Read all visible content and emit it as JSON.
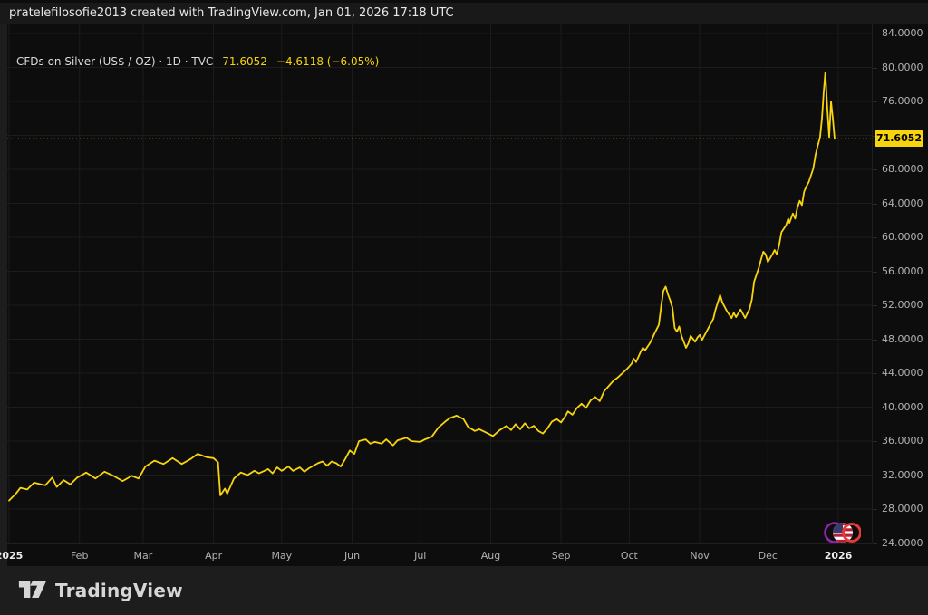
{
  "watermark_bar": {
    "text": "pratelefilosofie2013 created with TradingView.com, Jan 01, 2026 17:18 UTC"
  },
  "legend": {
    "symbol_title": "CFDs on Silver (US$ / OZ) · 1D · TVC",
    "last_price_text": "71.6052",
    "change_text": "−4.6118 (−6.05%)"
  },
  "price_scale": {
    "current_label": "71.6052",
    "ticks": [
      {
        "v": 84,
        "label": "84.0000"
      },
      {
        "v": 80,
        "label": "80.0000"
      },
      {
        "v": 76,
        "label": "76.0000"
      },
      {
        "v": 72,
        "label": "72.0000"
      },
      {
        "v": 68,
        "label": "68.0000"
      },
      {
        "v": 64,
        "label": "64.0000"
      },
      {
        "v": 60,
        "label": "60.0000"
      },
      {
        "v": 56,
        "label": "56.0000"
      },
      {
        "v": 52,
        "label": "52.0000"
      },
      {
        "v": 48,
        "label": "48.0000"
      },
      {
        "v": 44,
        "label": "44.0000"
      },
      {
        "v": 40,
        "label": "40.0000"
      },
      {
        "v": 36,
        "label": "36.0000"
      },
      {
        "v": 32,
        "label": "32.0000"
      },
      {
        "v": 28,
        "label": "28.0000"
      },
      {
        "v": 24,
        "label": "24.0000"
      }
    ]
  },
  "time_scale": {
    "labels": [
      {
        "text": "2025",
        "day": 0,
        "bold": true
      },
      {
        "text": "Feb",
        "day": 31
      },
      {
        "text": "Mar",
        "day": 59
      },
      {
        "text": "Apr",
        "day": 90
      },
      {
        "text": "May",
        "day": 120
      },
      {
        "text": "Jun",
        "day": 151
      },
      {
        "text": "Jul",
        "day": 181
      },
      {
        "text": "Aug",
        "day": 212
      },
      {
        "text": "Sep",
        "day": 243
      },
      {
        "text": "Oct",
        "day": 273
      },
      {
        "text": "Nov",
        "day": 304
      },
      {
        "text": "Dec",
        "day": 334
      },
      {
        "text": "2026",
        "day": 365,
        "bold": true
      }
    ]
  },
  "symbol_logo": {
    "icons": [
      "purple-ring-icon",
      "us-flag-icon",
      "red-ring-icon"
    ],
    "purple": "#8e24aa",
    "red": "#e53935",
    "flag_red": "#b22234",
    "flag_white": "#ffffff",
    "flag_blue": "#3c3b6e"
  },
  "footer": {
    "brand": "TradingView"
  },
  "colors": {
    "line": "#f7d40c",
    "label_bg": "#f7d40c",
    "grid": "#1c1c1c",
    "axis_text": "#b2b2b2",
    "background": "#0d0d0d",
    "frame": "#1d1d1d"
  },
  "chart_data": {
    "type": "line",
    "title": "CFDs on Silver (US$ / OZ)",
    "interval": "1D",
    "exchange": "TVC",
    "last_price": 71.6052,
    "change": -4.6118,
    "change_pct": -6.05,
    "ylim": [
      24,
      84
    ],
    "y_ticks": [
      24,
      28,
      32,
      36,
      40,
      44,
      48,
      52,
      56,
      60,
      64,
      68,
      72,
      76,
      80,
      84
    ],
    "x_domain_days": [
      0,
      365
    ],
    "x_domain_note": "day offset from 2025-01-01 to 2026-01-01",
    "grid": true,
    "legend_position": "top-left",
    "series": [
      {
        "name": "TVC:SILVER",
        "points": [
          [
            0,
            29.0
          ],
          [
            3,
            29.8
          ],
          [
            5,
            30.5
          ],
          [
            8,
            30.3
          ],
          [
            11,
            31.1
          ],
          [
            14,
            30.9
          ],
          [
            16,
            30.8
          ],
          [
            19,
            31.7
          ],
          [
            21,
            30.6
          ],
          [
            24,
            31.4
          ],
          [
            27,
            30.9
          ],
          [
            30,
            31.7
          ],
          [
            34,
            32.3
          ],
          [
            38,
            31.6
          ],
          [
            42,
            32.4
          ],
          [
            46,
            31.9
          ],
          [
            50,
            31.3
          ],
          [
            54,
            31.9
          ],
          [
            57,
            31.6
          ],
          [
            60,
            33.0
          ],
          [
            64,
            33.7
          ],
          [
            68,
            33.3
          ],
          [
            72,
            34.0
          ],
          [
            76,
            33.3
          ],
          [
            80,
            33.9
          ],
          [
            83,
            34.5
          ],
          [
            87,
            34.1
          ],
          [
            90,
            34.0
          ],
          [
            92,
            33.5
          ],
          [
            93,
            29.6
          ],
          [
            95,
            30.4
          ],
          [
            96,
            29.8
          ],
          [
            99,
            31.6
          ],
          [
            102,
            32.3
          ],
          [
            105,
            32.0
          ],
          [
            108,
            32.5
          ],
          [
            110,
            32.2
          ],
          [
            114,
            32.7
          ],
          [
            116,
            32.2
          ],
          [
            118,
            32.9
          ],
          [
            120,
            32.5
          ],
          [
            123,
            33.0
          ],
          [
            125,
            32.5
          ],
          [
            128,
            32.9
          ],
          [
            130,
            32.4
          ],
          [
            132,
            32.8
          ],
          [
            136,
            33.4
          ],
          [
            138,
            33.6
          ],
          [
            140,
            33.1
          ],
          [
            142,
            33.6
          ],
          [
            144,
            33.4
          ],
          [
            146,
            33.0
          ],
          [
            148,
            33.9
          ],
          [
            150,
            34.9
          ],
          [
            152,
            34.5
          ],
          [
            154,
            36.0
          ],
          [
            157,
            36.2
          ],
          [
            159,
            35.7
          ],
          [
            161,
            35.9
          ],
          [
            164,
            35.7
          ],
          [
            166,
            36.2
          ],
          [
            169,
            35.5
          ],
          [
            171,
            36.1
          ],
          [
            175,
            36.4
          ],
          [
            177,
            36.0
          ],
          [
            181,
            35.9
          ],
          [
            183,
            36.2
          ],
          [
            186,
            36.5
          ],
          [
            189,
            37.6
          ],
          [
            192,
            38.3
          ],
          [
            194,
            38.7
          ],
          [
            197,
            39.0
          ],
          [
            200,
            38.6
          ],
          [
            202,
            37.7
          ],
          [
            205,
            37.2
          ],
          [
            207,
            37.4
          ],
          [
            210,
            37.0
          ],
          [
            213,
            36.6
          ],
          [
            216,
            37.3
          ],
          [
            219,
            37.8
          ],
          [
            221,
            37.3
          ],
          [
            223,
            38.0
          ],
          [
            225,
            37.4
          ],
          [
            227,
            38.1
          ],
          [
            229,
            37.5
          ],
          [
            231,
            37.8
          ],
          [
            233,
            37.2
          ],
          [
            235,
            36.9
          ],
          [
            237,
            37.5
          ],
          [
            239,
            38.3
          ],
          [
            241,
            38.6
          ],
          [
            243,
            38.2
          ],
          [
            245,
            39.0
          ],
          [
            246,
            39.5
          ],
          [
            248,
            39.1
          ],
          [
            250,
            39.9
          ],
          [
            252,
            40.4
          ],
          [
            254,
            39.9
          ],
          [
            256,
            40.8
          ],
          [
            258,
            41.2
          ],
          [
            260,
            40.7
          ],
          [
            262,
            41.9
          ],
          [
            264,
            42.5
          ],
          [
            266,
            43.1
          ],
          [
            268,
            43.5
          ],
          [
            270,
            44.0
          ],
          [
            272,
            44.5
          ],
          [
            274,
            45.1
          ],
          [
            275,
            45.7
          ],
          [
            276,
            45.3
          ],
          [
            278,
            46.5
          ],
          [
            279,
            47.0
          ],
          [
            280,
            46.7
          ],
          [
            282,
            47.5
          ],
          [
            283,
            48.0
          ],
          [
            284,
            48.6
          ],
          [
            286,
            49.7
          ],
          [
            287,
            51.8
          ],
          [
            288,
            53.7
          ],
          [
            289,
            54.2
          ],
          [
            290,
            53.3
          ],
          [
            291,
            52.6
          ],
          [
            292,
            51.7
          ],
          [
            293,
            49.3
          ],
          [
            294,
            48.9
          ],
          [
            295,
            49.5
          ],
          [
            296,
            48.4
          ],
          [
            298,
            47.0
          ],
          [
            299,
            47.5
          ],
          [
            300,
            48.4
          ],
          [
            302,
            47.7
          ],
          [
            303,
            48.2
          ],
          [
            304,
            48.5
          ],
          [
            305,
            47.9
          ],
          [
            306,
            48.4
          ],
          [
            308,
            49.4
          ],
          [
            310,
            50.4
          ],
          [
            311,
            51.5
          ],
          [
            313,
            53.2
          ],
          [
            314,
            52.3
          ],
          [
            316,
            51.3
          ],
          [
            318,
            50.5
          ],
          [
            319,
            51.1
          ],
          [
            320,
            50.6
          ],
          [
            322,
            51.5
          ],
          [
            323,
            51.0
          ],
          [
            324,
            50.5
          ],
          [
            326,
            51.6
          ],
          [
            327,
            52.7
          ],
          [
            328,
            54.8
          ],
          [
            330,
            56.4
          ],
          [
            331,
            57.4
          ],
          [
            332,
            58.3
          ],
          [
            333,
            58.0
          ],
          [
            334,
            57.1
          ],
          [
            336,
            58.0
          ],
          [
            337,
            58.5
          ],
          [
            338,
            58.0
          ],
          [
            339,
            59.1
          ],
          [
            340,
            60.6
          ],
          [
            342,
            61.4
          ],
          [
            343,
            62.2
          ],
          [
            343.5,
            61.7
          ],
          [
            345,
            62.8
          ],
          [
            346,
            62.2
          ],
          [
            347,
            63.5
          ],
          [
            348,
            64.3
          ],
          [
            349,
            63.8
          ],
          [
            350,
            65.4
          ],
          [
            351,
            66.0
          ],
          [
            352,
            66.5
          ],
          [
            354,
            68.1
          ],
          [
            355,
            69.7
          ],
          [
            356,
            70.8
          ],
          [
            357,
            71.8
          ],
          [
            357.8,
            74.0
          ],
          [
            358.6,
            77.2
          ],
          [
            359.3,
            79.4
          ],
          [
            360.2,
            75.0
          ],
          [
            361,
            71.8
          ],
          [
            361.8,
            76.0
          ],
          [
            362.6,
            74.0
          ],
          [
            363.4,
            71.6
          ]
        ]
      }
    ]
  }
}
